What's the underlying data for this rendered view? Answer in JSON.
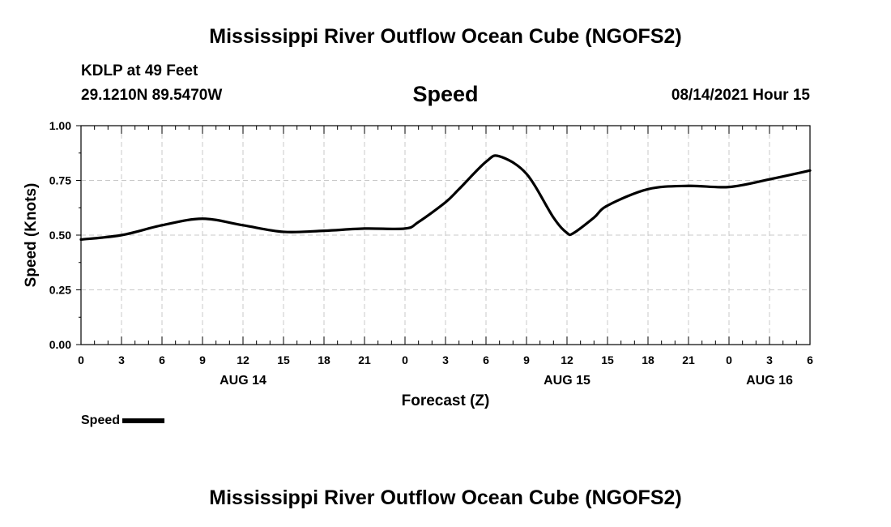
{
  "title_top": "Mississippi River Outflow Ocean Cube (NGOFS2)",
  "title_bottom": "Mississippi River Outflow Ocean Cube (NGOFS2)",
  "station": "KDLP at 49 Feet",
  "coordinates": "29.1210N  89.5470W",
  "variable": "Speed",
  "datetime": "08/14/2021 Hour 15",
  "legend": {
    "label": "Speed",
    "color": "#000000"
  },
  "chart_data": {
    "type": "line",
    "title": "Speed",
    "xlabel": "Forecast (Z)",
    "ylabel": "Speed (Knots)",
    "xlim": [
      0,
      54
    ],
    "ylim": [
      0,
      1.0
    ],
    "grid": true,
    "x_tick_labels": [
      "0",
      "3",
      "6",
      "9",
      "12",
      "15",
      "18",
      "21",
      "0",
      "3",
      "6",
      "9",
      "12",
      "15",
      "18",
      "21",
      "0",
      "3",
      "6"
    ],
    "y_tick_labels": [
      "0.00",
      "0.25",
      "0.50",
      "0.75",
      "1.00"
    ],
    "day_labels": [
      {
        "label": "AUG 14",
        "at_hour": 12
      },
      {
        "label": "AUG 15",
        "at_hour": 36
      },
      {
        "label": "AUG 16",
        "at_hour": 51
      }
    ],
    "series": [
      {
        "name": "Speed",
        "color": "#000000",
        "x": [
          0,
          3,
          6,
          9,
          12,
          15,
          18,
          21,
          24,
          25,
          27,
          28,
          30,
          31,
          33,
          35,
          36,
          36.5,
          38,
          39,
          42,
          45,
          48,
          51,
          54
        ],
        "y": [
          0.48,
          0.5,
          0.545,
          0.575,
          0.545,
          0.515,
          0.52,
          0.53,
          0.53,
          0.56,
          0.65,
          0.71,
          0.835,
          0.86,
          0.78,
          0.58,
          0.51,
          0.51,
          0.58,
          0.635,
          0.71,
          0.725,
          0.72,
          0.755,
          0.795
        ]
      }
    ]
  }
}
